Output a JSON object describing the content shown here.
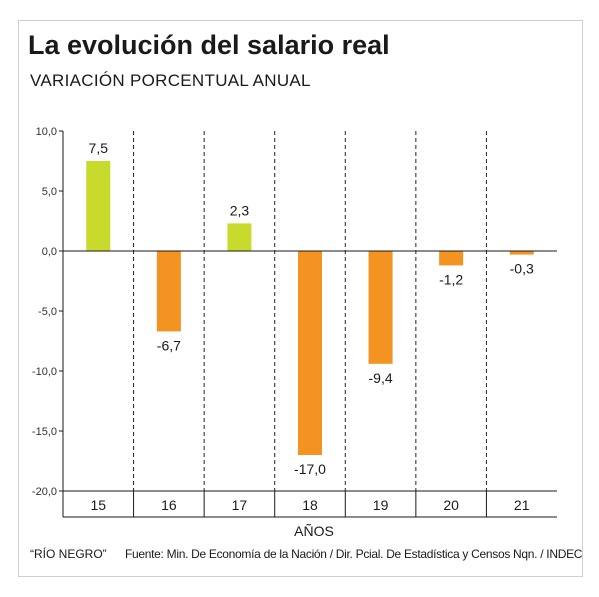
{
  "chart_data": {
    "type": "bar",
    "title": "La evolución del salario real",
    "subtitle": "VARIACIÓN PORCENTUAL ANUAL",
    "xlabel": "AÑOS",
    "ylabel": "",
    "categories": [
      "15",
      "16",
      "17",
      "18",
      "19",
      "20",
      "21"
    ],
    "values": [
      7.5,
      -6.7,
      2.3,
      -17.0,
      -9.4,
      -1.2,
      -0.3
    ],
    "value_labels": [
      "7,5",
      "-6,7",
      "2,3",
      "-17,0",
      "-9,4",
      "-1,2",
      "-0,3"
    ],
    "ylim": [
      -20,
      10
    ],
    "yticks": [
      10,
      5,
      0,
      -5,
      -10,
      -15,
      -20
    ],
    "ytick_labels": [
      "10,0",
      "5,0",
      "0,0",
      "-5,0",
      "-10,0",
      "-15,0",
      "-20,0"
    ],
    "colors": {
      "positive": "#c8da2b",
      "negative": "#f39322",
      "axis": "#1a1a1a",
      "grid": "#222222"
    },
    "grid": "dashed vertical separators between categories"
  },
  "footer": {
    "credit": "“RÍO NEGRO”",
    "source": "Fuente: Min. De Economía de la Nación / Dir. Pcial. De Estadística y Censos Nqn. / INDEC"
  }
}
